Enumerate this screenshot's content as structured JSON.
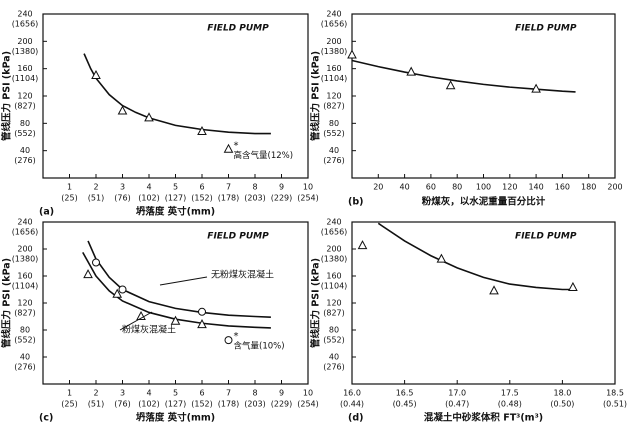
{
  "chart_data": [
    {
      "type": "scatter",
      "title": "FIELD PUMP",
      "panel_label": "(a)",
      "xlabel": "坍落度 英寸(mm)",
      "ylabel": "管线压力 PSI (kPa)",
      "xlim": [
        0,
        10
      ],
      "xticks": [
        1,
        2,
        3,
        4,
        5,
        6,
        7,
        8,
        9,
        10
      ],
      "xtick_sublabels": [
        "(25)",
        "(51)",
        "(76)",
        "(102)",
        "(127)",
        "(152)",
        "(178)",
        "(203)",
        "(229)",
        "(254)"
      ],
      "ylim": [
        0,
        240
      ],
      "yticks": [
        40,
        80,
        120,
        160,
        200,
        240
      ],
      "ytick_sublabels": [
        "(276)",
        "(552)",
        "(827)",
        "(1104)",
        "(1380)",
        "(1656)"
      ],
      "series": [
        {
          "marker": "triangle",
          "x": [
            2,
            3,
            4,
            6
          ],
          "values": [
            150,
            98,
            88,
            68
          ],
          "curve_x": [
            1.55,
            1.8,
            2,
            2.5,
            3,
            3.5,
            4,
            5,
            6,
            7,
            8,
            8.6
          ],
          "curve_y": [
            182,
            160,
            146,
            122,
            106,
            96,
            88,
            77,
            71,
            67,
            65,
            65
          ]
        }
      ],
      "annotations": [
        {
          "text": "高含气量(12%)",
          "symbol": "*",
          "marker": "triangle",
          "x": 7,
          "y": 42
        }
      ]
    },
    {
      "type": "scatter",
      "title": "FIELD PUMP",
      "panel_label": "(b)",
      "xlabel": "粉煤灰，以水泥重量百分比计",
      "ylabel": "管线压力 PSI (kPa)",
      "xlim": [
        0,
        200
      ],
      "xticks": [
        20,
        40,
        60,
        80,
        100,
        120,
        140,
        160,
        180,
        200
      ],
      "ylim": [
        0,
        240
      ],
      "yticks": [
        40,
        80,
        120,
        160,
        200,
        240
      ],
      "ytick_sublabels": [
        "(276)",
        "(552)",
        "(827)",
        "(1104)",
        "(1380)",
        "(1656)"
      ],
      "series": [
        {
          "marker": "triangle",
          "x": [
            0,
            45,
            75,
            140
          ],
          "values": [
            180,
            155,
            135,
            130
          ],
          "curve_x": [
            0,
            20,
            40,
            60,
            80,
            100,
            120,
            140,
            160,
            170
          ],
          "curve_y": [
            172,
            163,
            155,
            148,
            142,
            137,
            133,
            130,
            127,
            126
          ]
        }
      ]
    },
    {
      "type": "scatter",
      "title": "FIELD PUMP",
      "panel_label": "(c)",
      "xlabel": "坍落度 英寸(mm)",
      "ylabel": "管线压力 PSI (kPa)",
      "xlim": [
        0,
        10
      ],
      "xticks": [
        1,
        2,
        3,
        4,
        5,
        6,
        7,
        8,
        9,
        10
      ],
      "xtick_sublabels": [
        "(25)",
        "(51)",
        "(76)",
        "(102)",
        "(127)",
        "(152)",
        "(178)",
        "(203)",
        "(229)",
        "(254)"
      ],
      "ylim": [
        0,
        240
      ],
      "yticks": [
        40,
        80,
        120,
        160,
        200,
        240
      ],
      "ytick_sublabels": [
        "(276)",
        "(552)",
        "(827)",
        "(1104)",
        "(1380)",
        "(1656)"
      ],
      "series": [
        {
          "name": "无粉煤灰混凝土",
          "marker": "circle",
          "x": [
            2,
            3,
            6
          ],
          "values": [
            180,
            140,
            107
          ],
          "curve_x": [
            1.7,
            2,
            2.5,
            3,
            4,
            5,
            6,
            7,
            8,
            8.6
          ],
          "curve_y": [
            212,
            185,
            158,
            140,
            122,
            112,
            106,
            102,
            100,
            99
          ]
        },
        {
          "name": "粉煤灰混凝土",
          "marker": "triangle",
          "x": [
            1.7,
            2.8,
            3.7,
            5,
            6
          ],
          "values": [
            162,
            133,
            100,
            93,
            88
          ],
          "curve_x": [
            1.5,
            2,
            2.5,
            3,
            4,
            5,
            6,
            7,
            8,
            8.6
          ],
          "curve_y": [
            195,
            160,
            138,
            123,
            106,
            96,
            90,
            86,
            84,
            83
          ]
        }
      ],
      "annotations": [
        {
          "text": "含气量(10%)",
          "symbol": "*",
          "marker": "circle",
          "x": 7,
          "y": 65
        }
      ]
    },
    {
      "type": "scatter",
      "title": "FIELD PUMP",
      "panel_label": "(d)",
      "xlabel": "混凝土中砂浆体积 FT³(m³)",
      "ylabel": "管线压力 PSI (kPa)",
      "xlim": [
        16,
        18.5
      ],
      "xticks": [
        {
          "value": 16,
          "label": "16.0"
        },
        16.5,
        {
          "value": 17,
          "label": "17.0"
        },
        17.5,
        {
          "value": 18,
          "label": "18.0"
        },
        18.5
      ],
      "xtick_sublabels": [
        "(0.44)",
        "(0.45)",
        "(0.47)",
        "(0.48)",
        "(0.50)",
        "(0.51)"
      ],
      "ylim": [
        0,
        240
      ],
      "yticks": [
        40,
        80,
        120,
        160,
        200,
        240
      ],
      "ytick_sublabels": [
        "(276)",
        "(552)",
        "(827)",
        "(1104)",
        "(1380)",
        "(1656)"
      ],
      "series": [
        {
          "marker": "triangle",
          "x": [
            16.1,
            16.85,
            17.35,
            18.1
          ],
          "values": [
            205,
            185,
            138,
            143
          ],
          "curve_x": [
            16.25,
            16.5,
            16.75,
            17,
            17.25,
            17.5,
            17.75,
            18,
            18.1
          ],
          "curve_y": [
            238,
            212,
            190,
            172,
            158,
            148,
            143,
            140,
            140
          ]
        }
      ]
    }
  ]
}
